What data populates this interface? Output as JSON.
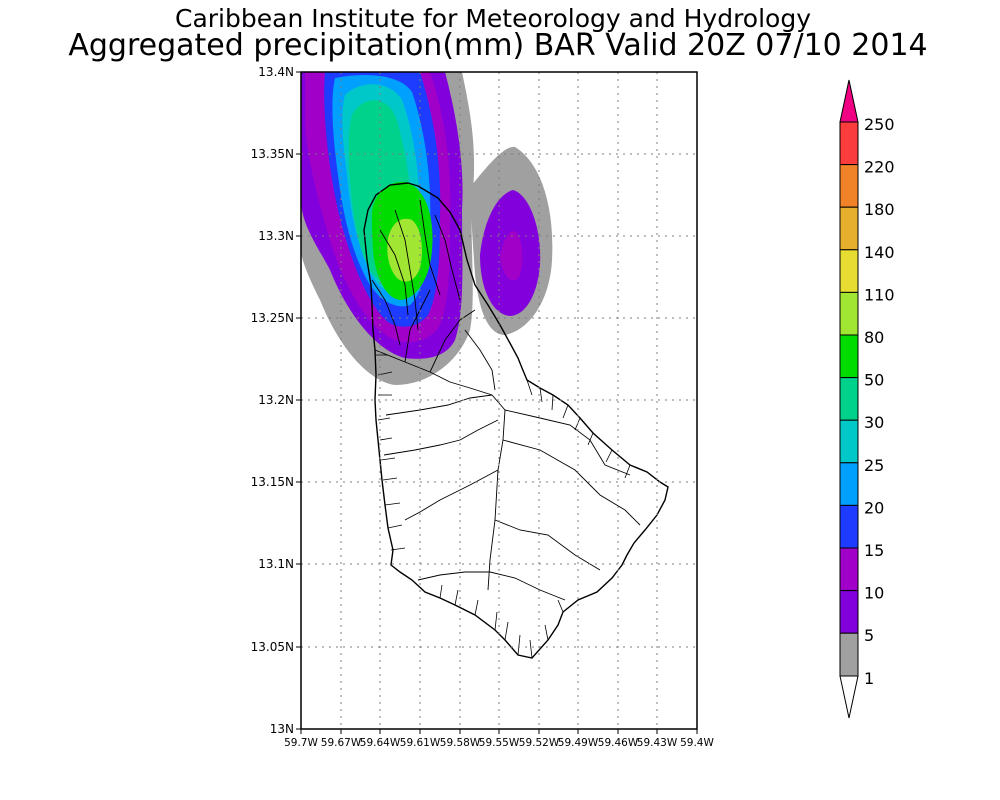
{
  "titles": {
    "line1": "Caribbean Institute for Meteorology and Hydrology",
    "line2": "Aggregated precipitation(mm) BAR Valid 20Z 07/10 2014"
  },
  "map": {
    "lat_labels": [
      "13.4N",
      "13.35N",
      "13.3N",
      "13.25N",
      "13.2N",
      "13.15N",
      "13.1N",
      "13.05N",
      "13N"
    ],
    "lon_labels": [
      "59.7W",
      "59.67W",
      "59.64W",
      "59.61W",
      "59.58W",
      "59.55W",
      "59.52W",
      "59.49W",
      "59.46W",
      "59.43W",
      "59.4W"
    ],
    "lat_range": [
      13.0,
      13.4
    ],
    "lon_range": [
      -59.7,
      -59.4
    ],
    "grid": "dotted",
    "land_fill": "#ffffff",
    "coast_color": "#000000"
  },
  "legend": {
    "levels": [
      "1",
      "5",
      "10",
      "15",
      "20",
      "25",
      "30",
      "50",
      "80",
      "110",
      "140",
      "180",
      "220",
      "250"
    ],
    "colors": [
      "#a0a0a0",
      "#8200dc",
      "#a000c8",
      "#1e3cff",
      "#00a0ff",
      "#00c8c8",
      "#00d28c",
      "#00dc00",
      "#a0e632",
      "#e6dc32",
      "#e6af2d",
      "#f08228",
      "#fa3c3c",
      "#f00082"
    ],
    "below_color": "#ffffff"
  }
}
